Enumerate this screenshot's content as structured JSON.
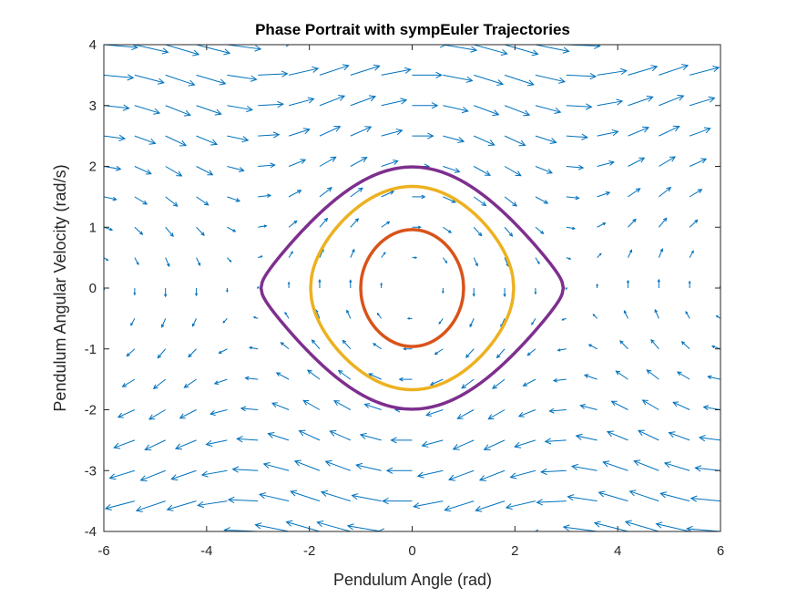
{
  "chart_data": {
    "type": "line",
    "title": "Phase Portrait with sympEuler Trajectories",
    "xlabel": "Pendulum Angle (rad)",
    "ylabel": "Pendulum Angular Velocity (rad/s)",
    "xlim": [
      -6,
      6
    ],
    "ylim": [
      -4,
      4
    ],
    "x_ticks": [
      "-6",
      "-4",
      "-2",
      "0",
      "2",
      "4",
      "6"
    ],
    "y_ticks": [
      "-4",
      "-3",
      "-2",
      "-1",
      "0",
      "1",
      "2",
      "3",
      "4"
    ],
    "grid": false,
    "legend": "none",
    "colors": {
      "quiver": "#0072BD",
      "axes": "#262626"
    },
    "quiver_field": {
      "equation": "dtheta/dt = omega; domega/dt = -sin(theta)",
      "x_range": [
        -6,
        6
      ],
      "y_range": [
        -4,
        4
      ],
      "x_step": 0.6,
      "y_step": 0.5
    },
    "series": [
      {
        "color": "#D95319",
        "amplitude_velocity": 0.96
      },
      {
        "color": "#EDB120",
        "amplitude_velocity": 1.67
      },
      {
        "color": "#7E2F8E",
        "amplitude_velocity": 1.99
      }
    ]
  }
}
